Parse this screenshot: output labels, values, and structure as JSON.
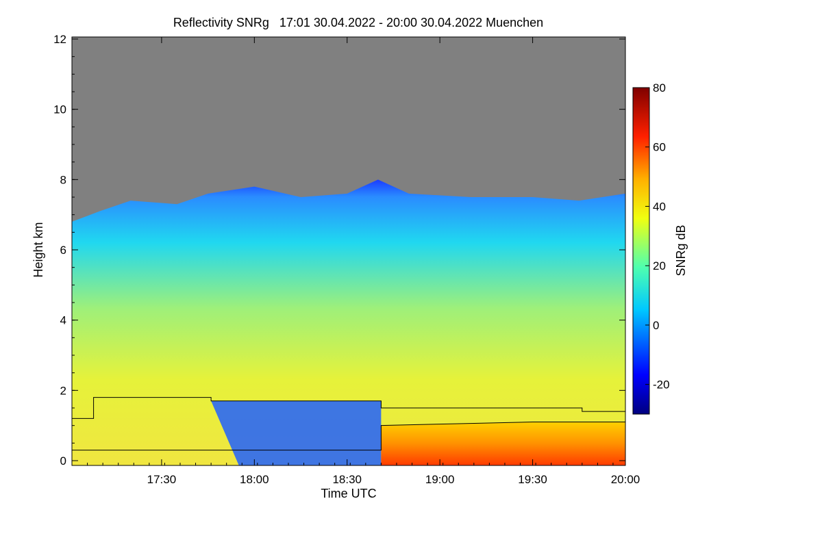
{
  "chart_data": {
    "type": "heatmap",
    "title": "Reflectivity SNRg   17:01 30.04.2022 - 20:00 30.04.2022 Muenchen",
    "xlabel": "Time UTC",
    "ylabel": "Height km",
    "x_range": [
      "17:01",
      "20:00"
    ],
    "x_ticks": [
      "17:30",
      "18:00",
      "18:30",
      "19:00",
      "19:30",
      "20:00"
    ],
    "ylim": [
      0,
      12
    ],
    "y_ticks": [
      0,
      2,
      4,
      6,
      8,
      10,
      12
    ],
    "colorbar": {
      "label": "SNRg dB",
      "range": [
        -30,
        80
      ],
      "ticks": [
        -20,
        0,
        20,
        40,
        60,
        80
      ]
    },
    "background_color": "#808080",
    "echo_top_km": [
      {
        "x": "17:01",
        "y": 6.8
      },
      {
        "x": "17:10",
        "y": 7.1
      },
      {
        "x": "17:20",
        "y": 7.4
      },
      {
        "x": "17:35",
        "y": 7.3
      },
      {
        "x": "17:45",
        "y": 7.6
      },
      {
        "x": "18:00",
        "y": 7.8
      },
      {
        "x": "18:15",
        "y": 7.5
      },
      {
        "x": "18:30",
        "y": 7.6
      },
      {
        "x": "18:40",
        "y": 8.0
      },
      {
        "x": "18:50",
        "y": 7.6
      },
      {
        "x": "19:10",
        "y": 7.5
      },
      {
        "x": "19:30",
        "y": 7.5
      },
      {
        "x": "19:45",
        "y": 7.4
      },
      {
        "x": "20:00",
        "y": 7.6
      }
    ],
    "overlay_lines": [
      {
        "points": [
          {
            "x": "17:01",
            "y": 1.2
          },
          {
            "x": "17:08",
            "y": 1.2
          },
          {
            "x": "17:08",
            "y": 1.8
          },
          {
            "x": "17:46",
            "y": 1.8
          },
          {
            "x": "17:46",
            "y": 1.7
          },
          {
            "x": "18:41",
            "y": 1.7
          },
          {
            "x": "18:41",
            "y": 1.5
          },
          {
            "x": "19:46",
            "y": 1.5
          },
          {
            "x": "19:46",
            "y": 1.4
          },
          {
            "x": "20:00",
            "y": 1.4
          }
        ]
      },
      {
        "points": [
          {
            "x": "17:01",
            "y": 0.3
          },
          {
            "x": "18:41",
            "y": 0.3
          },
          {
            "x": "18:41",
            "y": 1.0
          },
          {
            "x": "19:05",
            "y": 1.05
          },
          {
            "x": "19:30",
            "y": 1.1
          },
          {
            "x": "20:00",
            "y": 1.1
          }
        ]
      }
    ]
  }
}
